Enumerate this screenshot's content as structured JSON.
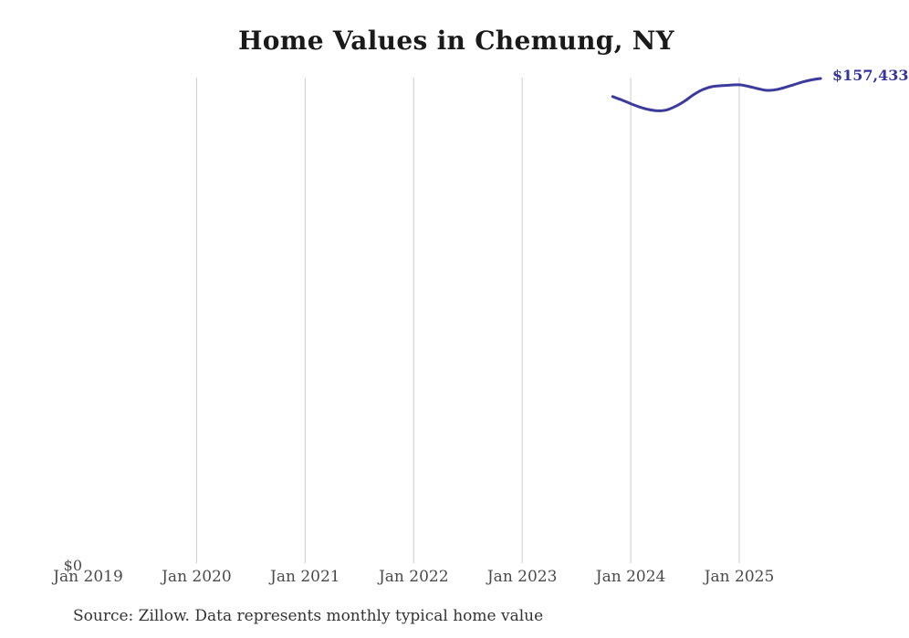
{
  "title": "Home Values in Chemung, NY",
  "source_note": "Source: Zillow. Data represents monthly typical home value",
  "y_axis": {
    "zero_label": "$0"
  },
  "latest_value_label": "$157,433",
  "colors": {
    "line": "#3b3b9e",
    "end_label": "#34349c",
    "gridline": "#cccccc",
    "axis_label": "#4a4a4a",
    "title": "#1a1a1a",
    "source": "#333333",
    "background": "#ffffff"
  },
  "chart_data": {
    "type": "line",
    "title": "Home Values in Chemung, NY",
    "xlabel": "",
    "ylabel": "",
    "ylim": [
      0,
      157433
    ],
    "grid": "vertical-yearly",
    "legend_position": "none",
    "x_tick_labels": [
      "Jan 2019",
      "Jan 2020",
      "Jan 2021",
      "Jan 2022",
      "Jan 2023",
      "Jan 2024",
      "Jan 2025"
    ],
    "gridline_ticks": [
      "Jan 2020",
      "Jan 2021",
      "Jan 2022",
      "Jan 2023",
      "Jan 2024",
      "Jan 2025"
    ],
    "series": [
      {
        "name": "Monthly typical home value",
        "months": [
          "Nov 2023",
          "Dec 2023",
          "Jan 2024",
          "Feb 2024",
          "Mar 2024",
          "Apr 2024",
          "May 2024",
          "Jun 2024",
          "Jul 2024",
          "Aug 2024",
          "Sep 2024",
          "Oct 2024",
          "Nov 2024",
          "Dec 2024",
          "Jan 2025",
          "Feb 2025",
          "Mar 2025",
          "Apr 2025",
          "May 2025",
          "Jun 2025",
          "Jul 2025",
          "Aug 2025",
          "Sep 2025",
          "Oct 2025"
        ],
        "values": [
          151600,
          150500,
          149300,
          148200,
          147400,
          147000,
          147300,
          148500,
          150200,
          152300,
          153900,
          154800,
          155100,
          155300,
          155400,
          154900,
          154200,
          153600,
          153800,
          154500,
          155400,
          156300,
          157000,
          157433
        ]
      }
    ],
    "end_value": 157433,
    "end_value_label": "$157,433"
  }
}
